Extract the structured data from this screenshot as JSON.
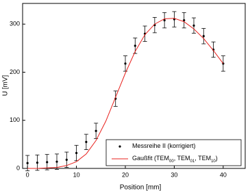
{
  "chart_data": {
    "type": "scatter",
    "x_label": "Position [mm]",
    "y_label": "U [mV]",
    "xlim": [
      -1,
      44.5
    ],
    "ylim": [
      0,
      343
    ],
    "xticks": [
      0,
      10,
      20,
      30,
      40
    ],
    "yticks": [
      0,
      100,
      200,
      300
    ],
    "legend": "lower right",
    "series": [
      {
        "name": "Messreihe II (korrigiert)",
        "type": "scatter",
        "color": "#000000",
        "x": [
          0,
          2,
          4,
          6,
          8,
          10,
          12,
          14,
          18,
          20,
          22,
          24,
          26,
          28,
          30,
          32,
          34,
          36,
          38,
          40
        ],
        "values": [
          11,
          12,
          13,
          14,
          18,
          32,
          55,
          78,
          145,
          218,
          255,
          280,
          298,
          308,
          310,
          308,
          297,
          275,
          247,
          218
        ],
        "errors": [
          16,
          16,
          16,
          16,
          16,
          16,
          16,
          16,
          16,
          16,
          16,
          16,
          16,
          16,
          16,
          16,
          16,
          16,
          16,
          16
        ]
      },
      {
        "name": "Gaußfit (TEM00, TEM01, TEM10)",
        "type": "line",
        "color": "#e8201c",
        "x": [
          0,
          2,
          4,
          6,
          8,
          10,
          12,
          14,
          16,
          18,
          20,
          22,
          24,
          26,
          28,
          30,
          32,
          34,
          36,
          38,
          40
        ],
        "values": [
          0,
          0,
          1,
          2,
          6,
          14,
          30,
          58,
          98,
          148,
          198,
          243,
          278,
          300,
          311,
          312,
          305,
          290,
          270,
          245,
          218
        ]
      }
    ]
  }
}
